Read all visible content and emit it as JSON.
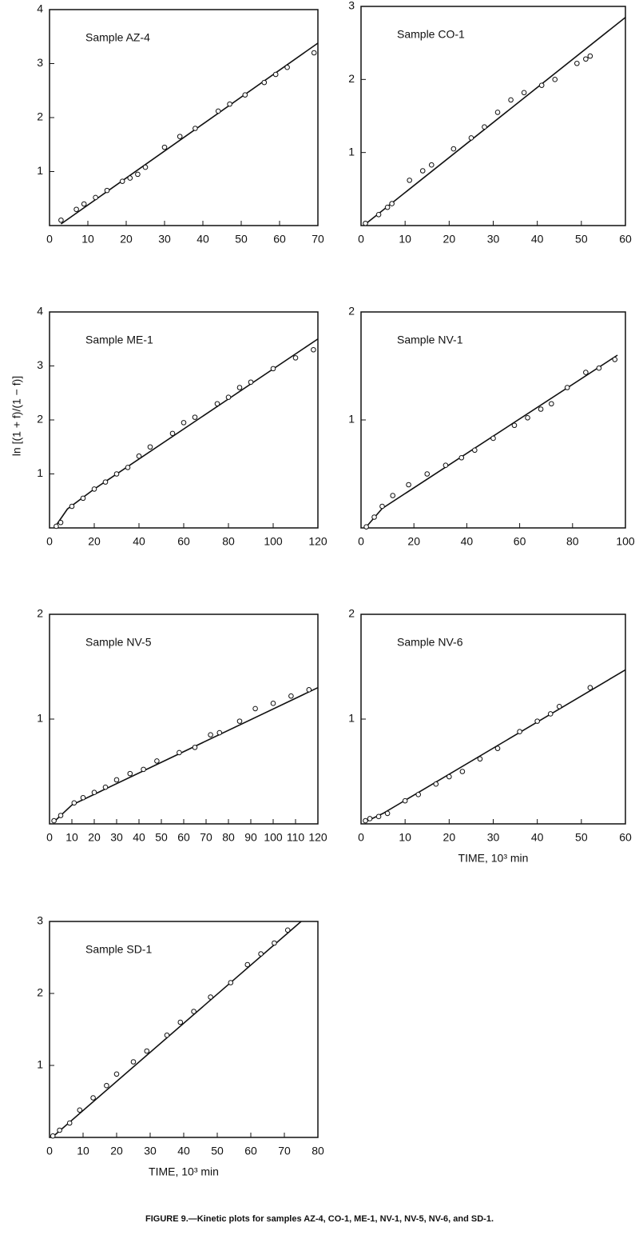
{
  "ylabel": "ln [(1 + f)/(1 − f)]",
  "caption": "FIGURE 9.—Kinetic plots for samples AZ-4, CO-1, ME-1, NV-1, NV-5, NV-6, and SD-1.",
  "chart_data": [
    {
      "type": "scatter",
      "title": "Sample AZ-4",
      "xlim": [
        0,
        70
      ],
      "xticks": [
        0,
        10,
        20,
        30,
        40,
        50,
        60,
        70
      ],
      "ylim": [
        0,
        4
      ],
      "yticks": [
        1,
        2,
        3,
        4
      ],
      "points": {
        "x": [
          3,
          7,
          9,
          12,
          15,
          19,
          21,
          23,
          25,
          30,
          34,
          38,
          44,
          47,
          51,
          56,
          59,
          62,
          69
        ],
        "y": [
          0.1,
          0.3,
          0.4,
          0.52,
          0.65,
          0.82,
          0.88,
          0.95,
          1.08,
          1.45,
          1.65,
          1.8,
          2.12,
          2.25,
          2.42,
          2.65,
          2.8,
          2.93,
          3.2
        ]
      },
      "fit": {
        "x": [
          3,
          70
        ],
        "y": [
          0.03,
          3.38
        ]
      }
    },
    {
      "type": "scatter",
      "title": "Sample CO-1",
      "xlim": [
        0,
        60
      ],
      "xticks": [
        0,
        10,
        20,
        30,
        40,
        50,
        60
      ],
      "ylim": [
        0,
        3
      ],
      "yticks": [
        1,
        2,
        3
      ],
      "points": {
        "x": [
          1,
          4,
          6,
          7,
          11,
          14,
          16,
          21,
          25,
          28,
          31,
          34,
          37,
          41,
          44,
          49,
          51,
          52
        ],
        "y": [
          0.03,
          0.15,
          0.25,
          0.3,
          0.62,
          0.75,
          0.83,
          1.05,
          1.2,
          1.35,
          1.55,
          1.72,
          1.82,
          1.92,
          2.0,
          2.22,
          2.28,
          2.32
        ]
      },
      "fit": {
        "x": [
          1,
          60
        ],
        "y": [
          0.02,
          2.85
        ]
      }
    },
    {
      "type": "scatter",
      "title": "Sample ME-1",
      "xlim": [
        0,
        120
      ],
      "xticks": [
        0,
        20,
        40,
        60,
        80,
        100,
        120
      ],
      "ylim": [
        0,
        4
      ],
      "yticks": [
        1,
        2,
        3,
        4
      ],
      "points": {
        "x": [
          3,
          5,
          10,
          15,
          20,
          25,
          30,
          35,
          40,
          45,
          55,
          60,
          65,
          75,
          80,
          85,
          90,
          100,
          110,
          118
        ],
        "y": [
          0.03,
          0.1,
          0.4,
          0.55,
          0.72,
          0.85,
          1.0,
          1.12,
          1.33,
          1.5,
          1.75,
          1.95,
          2.05,
          2.3,
          2.42,
          2.6,
          2.7,
          2.95,
          3.15,
          3.3
        ]
      },
      "fit": {
        "x": [
          3,
          8,
          20,
          120
        ],
        "y": [
          0.05,
          0.35,
          0.72,
          3.5
        ]
      }
    },
    {
      "type": "scatter",
      "title": "Sample NV-1",
      "xlim": [
        0,
        100
      ],
      "xticks": [
        0,
        20,
        40,
        60,
        80,
        100
      ],
      "ylim": [
        0,
        2
      ],
      "yticks": [
        1,
        2
      ],
      "points": {
        "x": [
          2,
          5,
          8,
          12,
          18,
          25,
          32,
          38,
          43,
          50,
          58,
          63,
          68,
          72,
          78,
          85,
          90,
          96
        ],
        "y": [
          0.01,
          0.1,
          0.2,
          0.3,
          0.4,
          0.5,
          0.58,
          0.65,
          0.72,
          0.83,
          0.95,
          1.02,
          1.1,
          1.15,
          1.3,
          1.44,
          1.48,
          1.56
        ]
      },
      "fit": {
        "x": [
          2,
          8,
          97
        ],
        "y": [
          0.01,
          0.18,
          1.6
        ]
      }
    },
    {
      "type": "scatter",
      "title": "Sample NV-5",
      "xlim": [
        0,
        120
      ],
      "xticks": [
        0,
        10,
        20,
        30,
        40,
        50,
        60,
        70,
        80,
        90,
        100,
        110,
        120
      ],
      "ylim": [
        0,
        2
      ],
      "yticks": [
        1,
        2
      ],
      "points": {
        "x": [
          2,
          5,
          11,
          15,
          20,
          25,
          30,
          36,
          42,
          48,
          58,
          65,
          72,
          76,
          85,
          92,
          100,
          108,
          116
        ],
        "y": [
          0.03,
          0.08,
          0.2,
          0.25,
          0.3,
          0.35,
          0.42,
          0.48,
          0.52,
          0.6,
          0.68,
          0.73,
          0.85,
          0.87,
          0.98,
          1.1,
          1.15,
          1.22,
          1.28
        ]
      },
      "fit": {
        "x": [
          2,
          10,
          120
        ],
        "y": [
          0.02,
          0.18,
          1.3
        ]
      }
    },
    {
      "type": "scatter",
      "title": "Sample NV-6",
      "xlabel": "TIME, 10³ min",
      "xlim": [
        0,
        60
      ],
      "xticks": [
        0,
        10,
        20,
        30,
        40,
        50,
        60
      ],
      "ylim": [
        0,
        2
      ],
      "yticks": [
        1,
        2
      ],
      "points": {
        "x": [
          1,
          2,
          4,
          6,
          10,
          13,
          17,
          20,
          23,
          27,
          31,
          36,
          40,
          43,
          45,
          52
        ],
        "y": [
          0.03,
          0.05,
          0.07,
          0.1,
          0.22,
          0.28,
          0.38,
          0.45,
          0.5,
          0.62,
          0.72,
          0.88,
          0.98,
          1.05,
          1.12,
          1.3
        ]
      },
      "fit": {
        "x": [
          1,
          5,
          60
        ],
        "y": [
          0.02,
          0.1,
          1.47
        ]
      }
    },
    {
      "type": "scatter",
      "title": "Sample SD-1",
      "xlabel": "TIME, 10³ min",
      "xlim": [
        0,
        80
      ],
      "xticks": [
        0,
        10,
        20,
        30,
        40,
        50,
        60,
        70,
        80
      ],
      "ylim": [
        0,
        3
      ],
      "yticks": [
        1,
        2,
        3
      ],
      "points": {
        "x": [
          1,
          3,
          6,
          9,
          13,
          17,
          20,
          25,
          29,
          35,
          39,
          43,
          48,
          54,
          59,
          63,
          67,
          71
        ],
        "y": [
          0.02,
          0.1,
          0.2,
          0.38,
          0.55,
          0.72,
          0.88,
          1.05,
          1.2,
          1.42,
          1.6,
          1.75,
          1.95,
          2.15,
          2.4,
          2.55,
          2.7,
          2.88
        ]
      },
      "fit": {
        "x": [
          1,
          75
        ],
        "y": [
          0.01,
          3.0
        ]
      }
    }
  ]
}
